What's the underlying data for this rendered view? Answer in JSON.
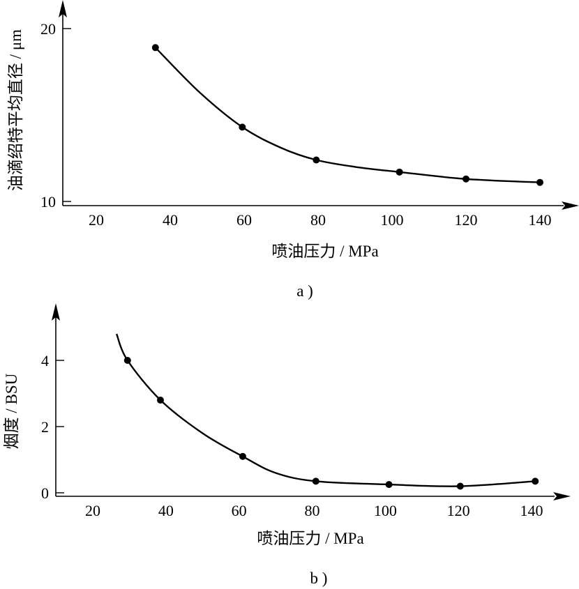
{
  "chart_data": [
    {
      "type": "line",
      "panel_label": "a )",
      "xlabel": "喷油压力 / MPa",
      "ylabel": "油滴绍特平均直径 / μm",
      "x_ticks": [
        20,
        40,
        60,
        80,
        100,
        120,
        140
      ],
      "y_ticks": [
        10,
        20
      ],
      "xlim": [
        12,
        150
      ],
      "ylim": [
        10,
        21
      ],
      "series": [
        {
          "x": [
            36,
            59.5,
            79.5,
            102,
            120,
            140
          ],
          "y": [
            18.9,
            14.3,
            12.4,
            11.7,
            11.3,
            11.1
          ]
        }
      ],
      "curve": {
        "x": [
          36,
          48,
          59.5,
          70,
          79.5,
          90,
          102,
          120,
          140
        ],
        "y": [
          18.9,
          16.3,
          14.3,
          13.1,
          12.4,
          12.0,
          11.7,
          11.3,
          11.1
        ]
      },
      "grid": false
    },
    {
      "type": "line",
      "panel_label": "b )",
      "xlabel": "喷油压力 / MPa",
      "ylabel": "烟度 / BSU",
      "x_ticks": [
        20,
        40,
        60,
        80,
        100,
        120,
        140
      ],
      "y_ticks": [
        0,
        2,
        4
      ],
      "xlim": [
        12,
        150
      ],
      "ylim": [
        0,
        5.5
      ],
      "series": [
        {
          "x": [
            29.5,
            38.5,
            61,
            81,
            101,
            120.5,
            141
          ],
          "y": [
            4.0,
            2.8,
            1.1,
            0.35,
            0.25,
            0.2,
            0.35
          ]
        }
      ],
      "curve": {
        "x": [
          26.5,
          29.5,
          38.5,
          50,
          61,
          70,
          81,
          101,
          120.5,
          141
        ],
        "y": [
          4.8,
          4.0,
          2.8,
          1.8,
          1.1,
          0.6,
          0.35,
          0.25,
          0.2,
          0.35
        ]
      },
      "grid": false
    }
  ]
}
